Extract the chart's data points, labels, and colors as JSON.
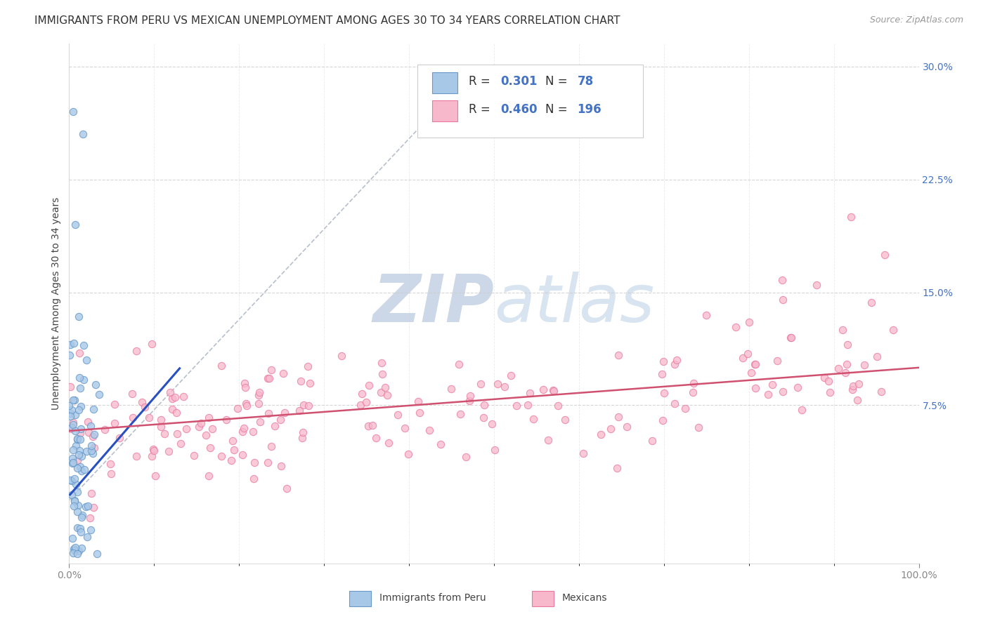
{
  "title": "IMMIGRANTS FROM PERU VS MEXICAN UNEMPLOYMENT AMONG AGES 30 TO 34 YEARS CORRELATION CHART",
  "source": "Source: ZipAtlas.com",
  "ylabel": "Unemployment Among Ages 30 to 34 years",
  "xlim": [
    0,
    1.0
  ],
  "ylim": [
    -0.03,
    0.315
  ],
  "ytick_positions": [
    0.075,
    0.15,
    0.225,
    0.3
  ],
  "ytick_labels": [
    "7.5%",
    "15.0%",
    "22.5%",
    "30.0%"
  ],
  "peru_R": 0.301,
  "peru_N": 78,
  "mex_R": 0.46,
  "mex_N": 196,
  "peru_dot_color": "#a8c8e8",
  "peru_dot_edge": "#6898c8",
  "mex_dot_color": "#f8b8cc",
  "mex_dot_edge": "#e878a0",
  "peru_line_color": "#2850c0",
  "mex_line_color": "#d05070",
  "dash_color": "#b0b8c8",
  "title_fontsize": 11,
  "axis_label_fontsize": 10,
  "tick_fontsize": 10,
  "tick_color_y": "#4472c4",
  "tick_color_x": "#333333",
  "background_color": "#ffffff",
  "grid_color": "#cccccc",
  "watermark_zip": "ZIP",
  "watermark_atlas": "atlas",
  "watermark_color": "#ccd8e8",
  "legend_text_color": "#333333",
  "legend_val_color": "#4472c4"
}
